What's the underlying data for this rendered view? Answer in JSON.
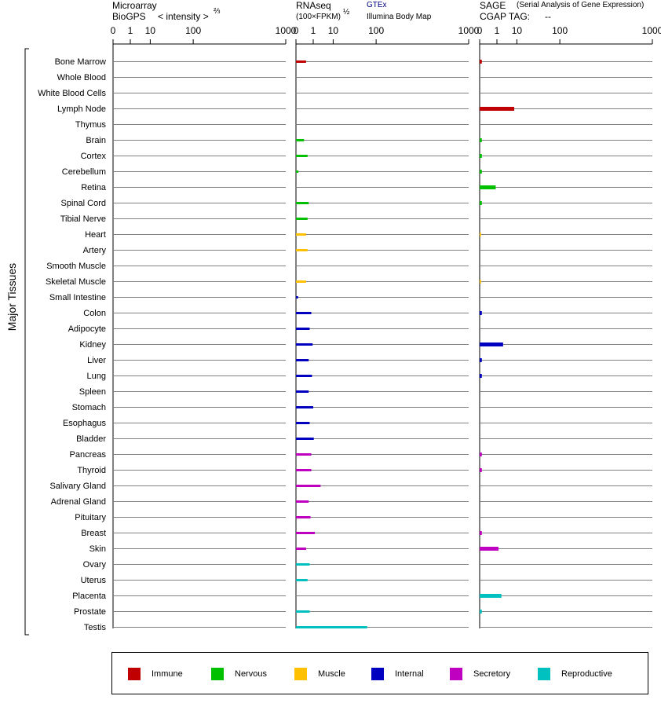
{
  "headers": {
    "microarray_line1": "Microarray",
    "microarray_line2": "BioGPS",
    "microarray_intensity": "< intensity >",
    "microarray_exp": "⅔",
    "rnaseq_line1": "RNAseq",
    "rnaseq_line2": "(100×FPKM)",
    "rnaseq_exp": "½",
    "gtex": "GTEx",
    "illumina": "Illumina Body Map",
    "sage_line1": "SAGE",
    "sage_desc": "(Serial Analysis of Gene Expression)",
    "sage_line2": "CGAP TAG:",
    "sage_tag": "--"
  },
  "y_group_label": "Major Tissues",
  "legend": [
    {
      "name": "Immune",
      "color": "#c00000"
    },
    {
      "name": "Nervous",
      "color": "#00c000"
    },
    {
      "name": "Muscle",
      "color": "#ffc000"
    },
    {
      "name": "Internal",
      "color": "#0000c0"
    },
    {
      "name": "Secretory",
      "color": "#c000c0"
    },
    {
      "name": "Reproductive",
      "color": "#00c0c0"
    }
  ],
  "chart_data": {
    "type": "bar",
    "orientation": "horizontal",
    "axis_ticks": [
      "0",
      "1",
      "10",
      "100",
      "1000"
    ],
    "axis_tick_values": [
      0,
      1,
      10,
      100,
      1000
    ],
    "panels": [
      "Microarray",
      "RNAseq",
      "SAGE"
    ],
    "categories": [
      "Bone Marrow",
      "Whole Blood",
      "White Blood Cells",
      "Lymph Node",
      "Thymus",
      "Brain",
      "Cortex",
      "Cerebellum",
      "Retina",
      "Spinal Cord",
      "Tibial Nerve",
      "Heart",
      "Artery",
      "Smooth Muscle",
      "Skeletal Muscle",
      "Small Intestine",
      "Colon",
      "Adipocyte",
      "Kidney",
      "Liver",
      "Lung",
      "Spleen",
      "Stomach",
      "Esophagus",
      "Bladder",
      "Pancreas",
      "Thyroid",
      "Salivary Gland",
      "Adrenal Gland",
      "Pituitary",
      "Breast",
      "Skin",
      "Ovary",
      "Uterus",
      "Placenta",
      "Prostate",
      "Testis"
    ],
    "groups": [
      "Immune",
      "Immune",
      "Immune",
      "Immune",
      "Immune",
      "Nervous",
      "Nervous",
      "Nervous",
      "Nervous",
      "Nervous",
      "Nervous",
      "Muscle",
      "Muscle",
      "Muscle",
      "Muscle",
      "Internal",
      "Internal",
      "Internal",
      "Internal",
      "Internal",
      "Internal",
      "Internal",
      "Internal",
      "Internal",
      "Internal",
      "Secretory",
      "Secretory",
      "Secretory",
      "Secretory",
      "Secretory",
      "Secretory",
      "Secretory",
      "Reproductive",
      "Reproductive",
      "Reproductive",
      "Reproductive",
      "Reproductive"
    ],
    "series": [
      {
        "values": [
          null,
          null,
          null,
          null,
          null,
          null,
          null,
          null,
          null,
          null,
          null,
          null,
          null,
          null,
          null,
          null,
          null,
          null,
          null,
          null,
          null,
          null,
          null,
          null,
          null,
          null,
          null,
          null,
          null,
          null,
          null,
          null,
          null,
          null,
          null,
          null,
          null
        ]
      },
      {
        "values": [
          0.2,
          null,
          null,
          null,
          null,
          0.1,
          0.3,
          0.003,
          null,
          0.4,
          0.3,
          0.2,
          0.3,
          null,
          0.2,
          0.002,
          0.7,
          0.5,
          0.9,
          0.4,
          0.8,
          0.4,
          1.0,
          0.5,
          1.1,
          0.7,
          0.7,
          2.9,
          0.4,
          0.6,
          1.3,
          0.2,
          0.5,
          0.3,
          null,
          0.5,
          70
        ]
      },
      {
        "values": [
          0.002,
          null,
          null,
          8,
          null,
          0.002,
          0.002,
          0.002,
          0.8,
          0.002,
          null,
          0.0005,
          null,
          null,
          0.0005,
          null,
          0.002,
          null,
          2.5,
          0.002,
          0.002,
          null,
          null,
          null,
          null,
          0.002,
          0.002,
          null,
          null,
          null,
          0.002,
          1.3,
          null,
          null,
          2,
          0.002,
          null
        ]
      }
    ]
  }
}
